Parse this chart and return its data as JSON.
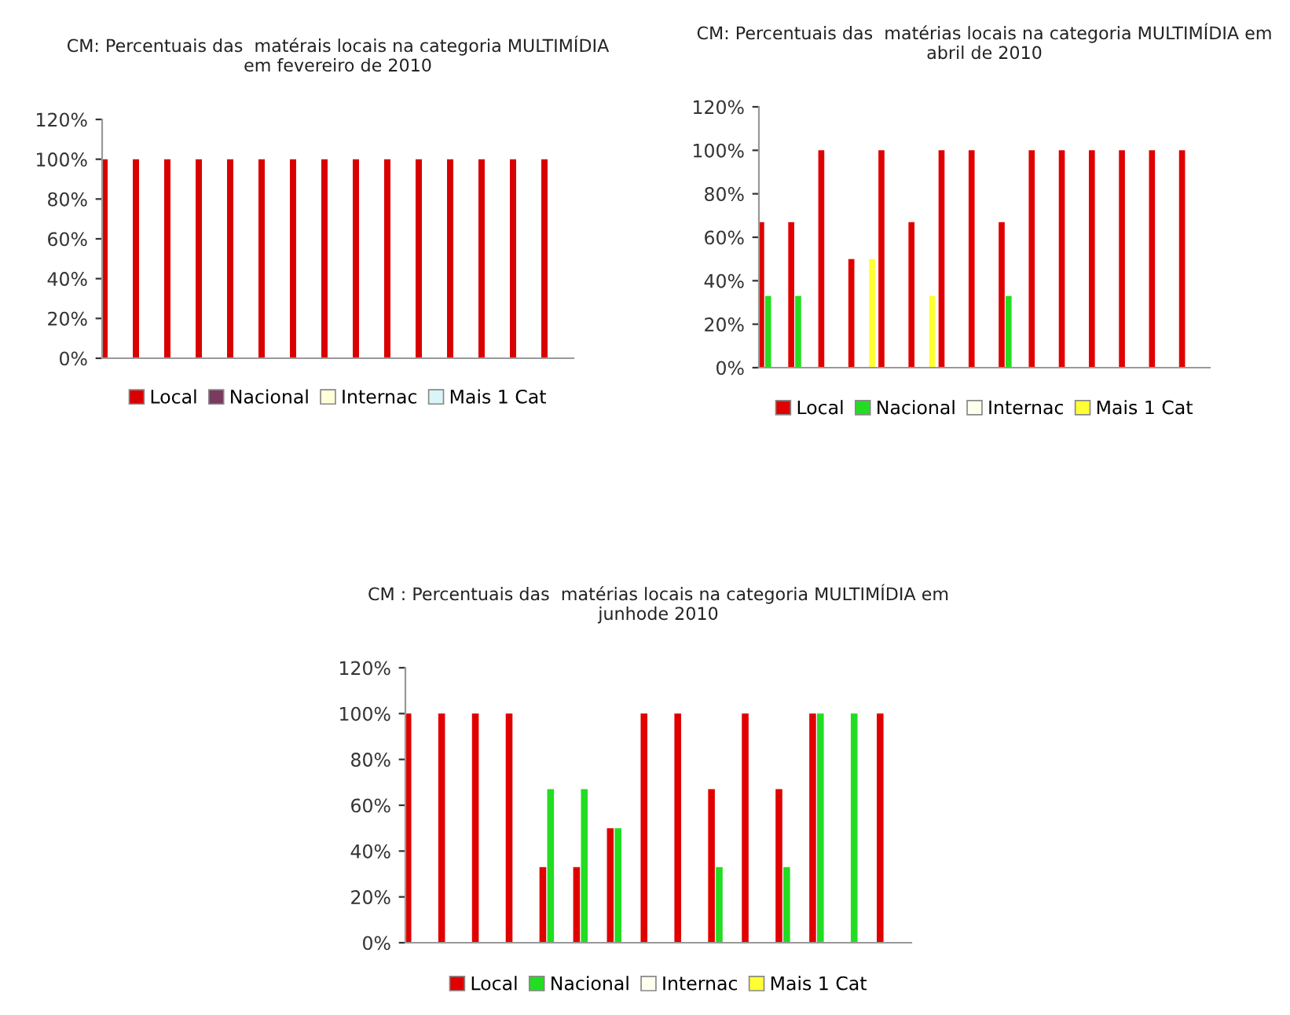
{
  "chart_data": [
    {
      "type": "bar",
      "title": "CM: Percentuais das  matérais locais na categoria MULTIMÍDIA\nem fevereiro de 2010",
      "categories": [
        null,
        null,
        null,
        null,
        null,
        null,
        null,
        null,
        null,
        null,
        null,
        null,
        null,
        null,
        null
      ],
      "series": [
        {
          "name": "Local",
          "color": "#d90000",
          "values": [
            100,
            100,
            100,
            100,
            100,
            100,
            100,
            100,
            100,
            100,
            100,
            100,
            100,
            100,
            100
          ]
        },
        {
          "name": "Nacional",
          "color": "#7a3b5e",
          "values": [
            null,
            null,
            null,
            null,
            null,
            null,
            null,
            null,
            null,
            null,
            null,
            null,
            null,
            null,
            null
          ]
        },
        {
          "name": "Internac",
          "color": "#ffffd9",
          "values": [
            null,
            null,
            null,
            null,
            null,
            null,
            null,
            null,
            null,
            null,
            null,
            null,
            null,
            null,
            null
          ]
        },
        {
          "name": "Mais 1 Cat",
          "color": "#d9f5f8",
          "values": [
            null,
            null,
            null,
            null,
            null,
            null,
            null,
            null,
            null,
            null,
            null,
            null,
            null,
            null,
            null
          ]
        }
      ],
      "ylim": [
        0,
        120
      ],
      "yticks": [
        {
          "value": 0,
          "label": "0%"
        },
        {
          "value": 20,
          "label": "20%"
        },
        {
          "value": 40,
          "label": "40%"
        },
        {
          "value": 60,
          "label": "60%"
        },
        {
          "value": 80,
          "label": "80%"
        },
        {
          "value": 100,
          "label": "100%"
        },
        {
          "value": 120,
          "label": "120%"
        }
      ],
      "tick_labels": "y",
      "grid": false,
      "legend": "bottom"
    },
    {
      "type": "bar",
      "title": "CM: Percentuais das  matérias locais na categoria MULTIMÍDIA em\nabril de 2010",
      "categories": [
        null,
        null,
        null,
        null,
        null,
        null,
        null,
        null,
        null,
        null,
        null,
        null,
        null,
        null,
        null
      ],
      "series": [
        {
          "name": "Local",
          "color": "#e00000",
          "values": [
            67,
            67,
            100,
            50,
            100,
            67,
            100,
            100,
            67,
            100,
            100,
            100,
            100,
            100,
            100
          ]
        },
        {
          "name": "Nacional",
          "color": "#22dd22",
          "values": [
            33,
            33,
            null,
            null,
            null,
            null,
            null,
            null,
            33,
            null,
            null,
            null,
            null,
            null,
            null
          ]
        },
        {
          "name": "Internac",
          "color": "#ffffee",
          "values": [
            null,
            null,
            null,
            null,
            null,
            null,
            null,
            null,
            null,
            null,
            null,
            null,
            null,
            null,
            null
          ]
        },
        {
          "name": "Mais 1 Cat",
          "color": "#ffff33",
          "values": [
            null,
            null,
            null,
            50,
            null,
            33,
            null,
            null,
            null,
            null,
            null,
            null,
            null,
            null,
            null
          ]
        }
      ],
      "ylim": [
        0,
        120
      ],
      "yticks": [
        {
          "value": 0,
          "label": "0%"
        },
        {
          "value": 20,
          "label": "20%"
        },
        {
          "value": 40,
          "label": "40%"
        },
        {
          "value": 60,
          "label": "60%"
        },
        {
          "value": 80,
          "label": "80%"
        },
        {
          "value": 100,
          "label": "100%"
        },
        {
          "value": 120,
          "label": "120%"
        }
      ],
      "tick_labels": "y",
      "grid": false,
      "legend": "bottom"
    },
    {
      "type": "bar",
      "title": "CM : Percentuais das  matérias locais na categoria MULTIMÍDIA em\njunhode 2010",
      "categories": [
        null,
        null,
        null,
        null,
        null,
        null,
        null,
        null,
        null,
        null,
        null,
        null,
        null,
        null,
        null
      ],
      "series": [
        {
          "name": "Local",
          "color": "#e00000",
          "values": [
            100,
            100,
            100,
            100,
            33,
            33,
            50,
            100,
            100,
            67,
            100,
            67,
            100,
            null,
            100
          ]
        },
        {
          "name": "Nacional",
          "color": "#22dd22",
          "values": [
            null,
            null,
            null,
            null,
            67,
            67,
            50,
            null,
            null,
            33,
            null,
            33,
            100,
            100,
            null
          ]
        },
        {
          "name": "Internac",
          "color": "#ffffee",
          "values": [
            null,
            null,
            null,
            null,
            null,
            null,
            null,
            null,
            null,
            null,
            null,
            null,
            null,
            null,
            null
          ]
        },
        {
          "name": "Mais 1 Cat",
          "color": "#ffff33",
          "values": [
            null,
            null,
            null,
            null,
            null,
            null,
            null,
            null,
            null,
            null,
            null,
            null,
            null,
            null,
            null
          ]
        }
      ],
      "ylim": [
        0,
        120
      ],
      "yticks": [
        {
          "value": 0,
          "label": "0%"
        },
        {
          "value": 20,
          "label": "20%"
        },
        {
          "value": 40,
          "label": "40%"
        },
        {
          "value": 60,
          "label": "60%"
        },
        {
          "value": 80,
          "label": "80%"
        },
        {
          "value": 100,
          "label": "100%"
        },
        {
          "value": 120,
          "label": "120%"
        }
      ],
      "tick_labels": "y",
      "grid": false,
      "legend": "bottom"
    }
  ]
}
